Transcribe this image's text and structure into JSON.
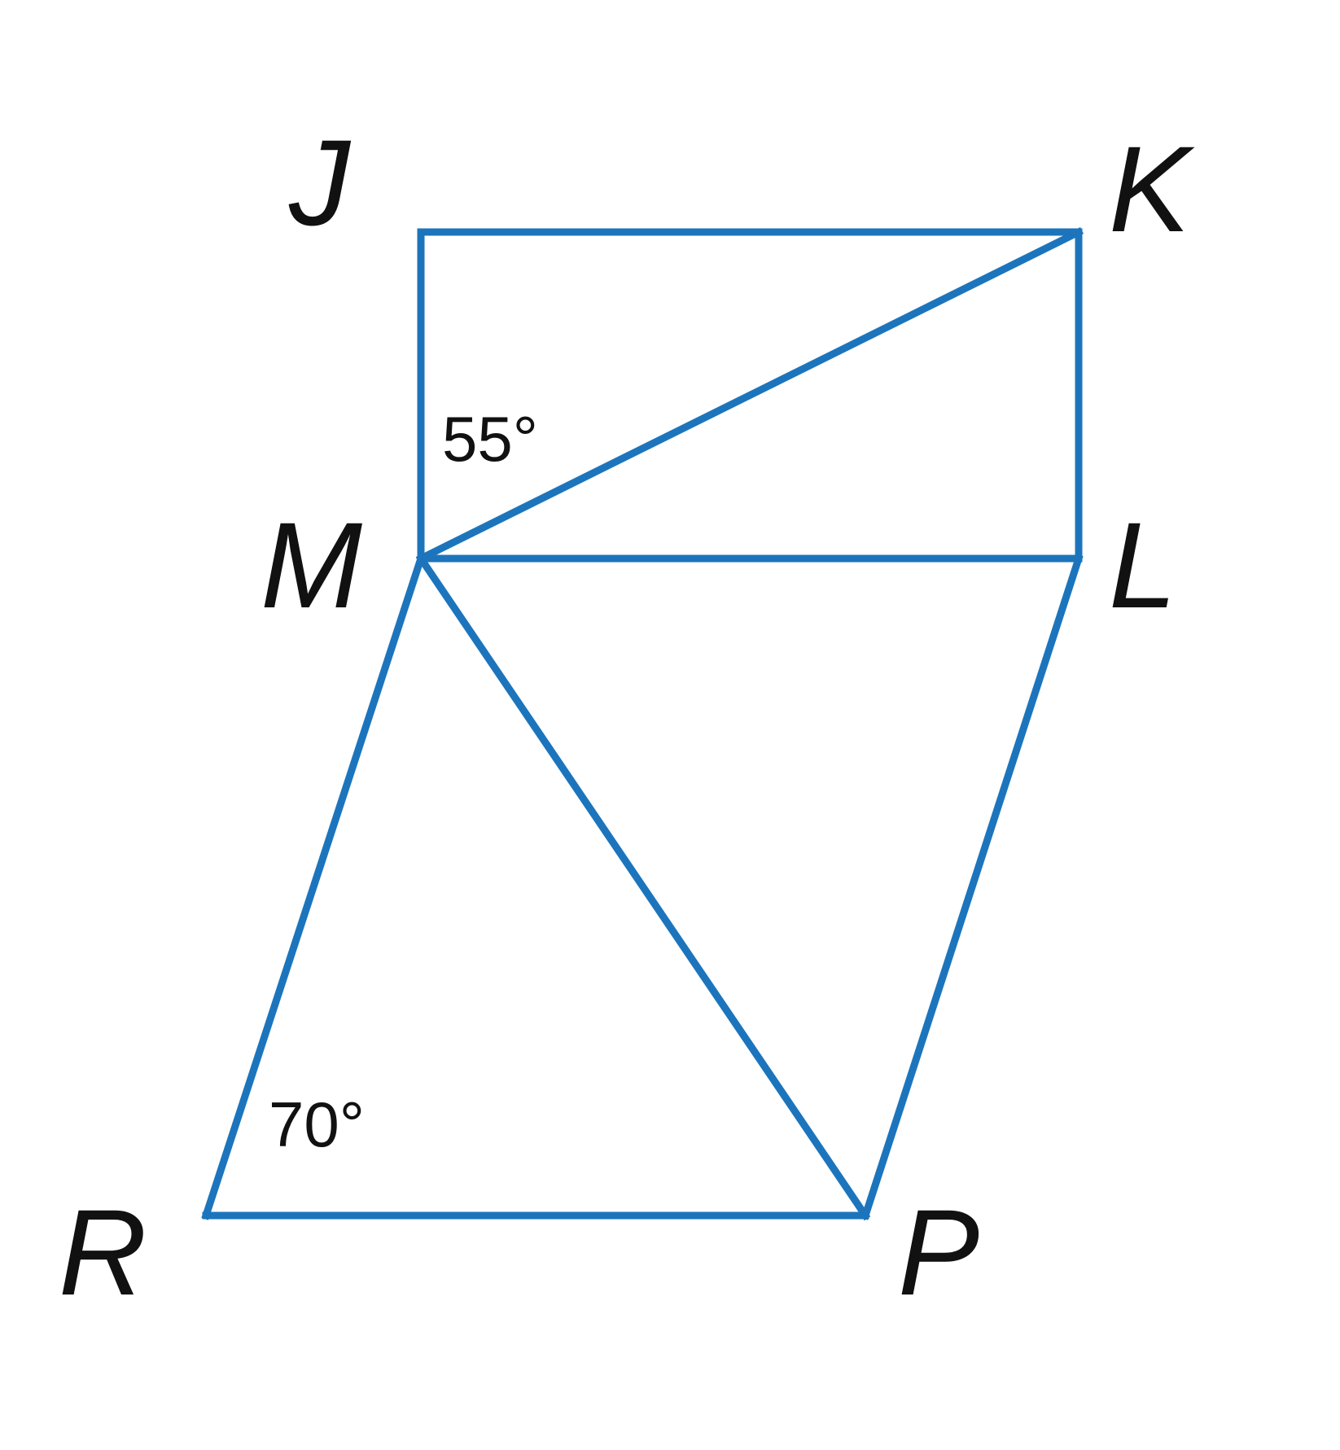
{
  "diagram": {
    "stroke_color": "#1c75bc",
    "label_color": "#111111",
    "vertices": {
      "J": "J",
      "K": "K",
      "L": "L",
      "M": "M",
      "P": "P",
      "R": "R"
    },
    "segments": [
      "JK",
      "KL",
      "LM",
      "MJ",
      "MK",
      "MR",
      "RP",
      "MP",
      "LP"
    ],
    "angles": {
      "angle_jmk": "55°",
      "angle_mrp": "70°"
    }
  }
}
